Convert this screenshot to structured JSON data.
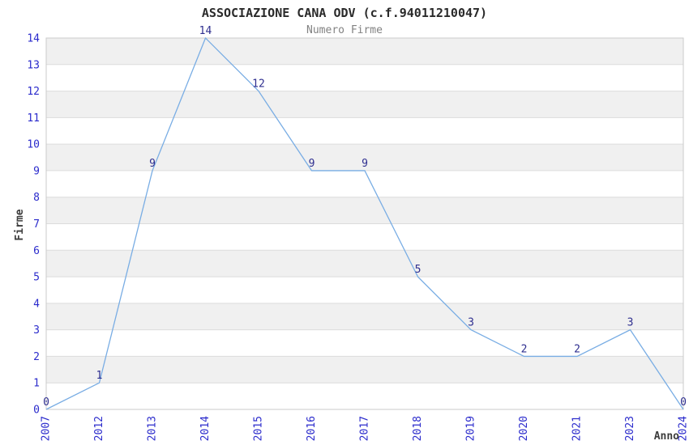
{
  "title": "ASSOCIAZIONE CANA ODV (c.f.94011210047)",
  "subtitle": "Numero Firme",
  "chart_data": {
    "type": "line",
    "title": "ASSOCIAZIONE CANA ODV (c.f.94011210047)",
    "subtitle": "Numero Firme",
    "xlabel": "Anno",
    "ylabel": "Firme",
    "x": [
      "2007",
      "2012",
      "2013",
      "2014",
      "2015",
      "2016",
      "2017",
      "2018",
      "2019",
      "2020",
      "2021",
      "2023",
      "2024"
    ],
    "values": [
      0,
      1,
      9,
      14,
      12,
      9,
      9,
      5,
      3,
      2,
      2,
      3,
      0
    ],
    "ylim": [
      0,
      14
    ],
    "ytick_step": 1,
    "grid": true,
    "legend": false,
    "x_labels_rotated_degrees": -90,
    "zebra_bands": true,
    "colors": {
      "line": "#79ade4",
      "tick_labels": "#2b2bcc",
      "value_labels": "#2e2e8f",
      "title": "#2a2a2a",
      "subtitle": "#828282",
      "axis_titles": "#3c3c3c",
      "band": "#f0f0f0",
      "grid": "#dcdcdc",
      "border": "#cbcbcb",
      "background": "#ffffff"
    }
  }
}
